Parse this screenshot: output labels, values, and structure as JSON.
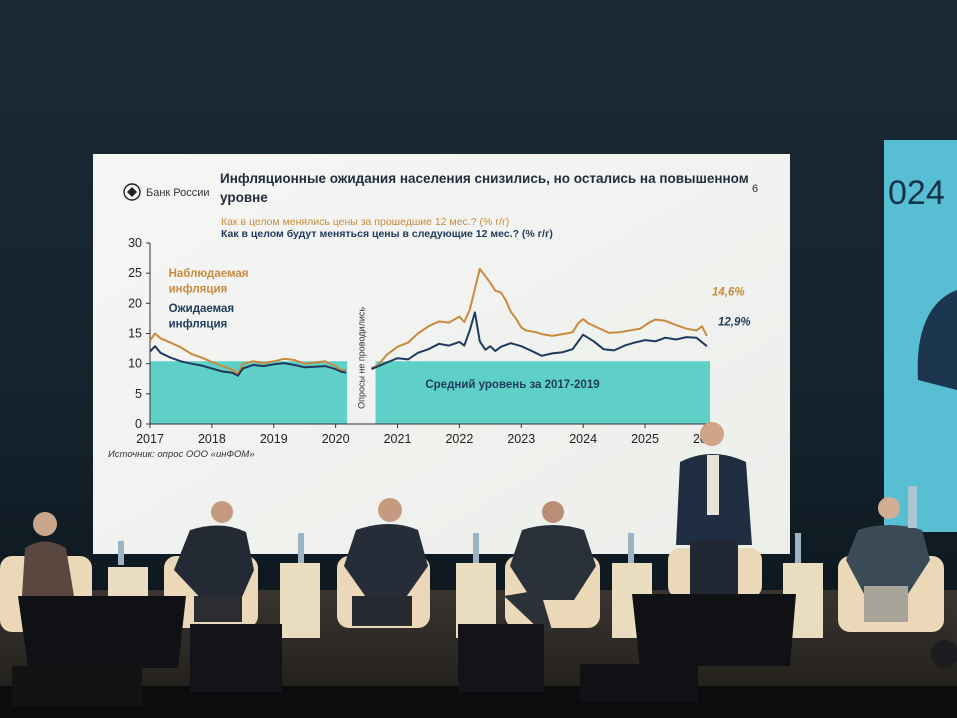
{
  "slide": {
    "logo_text": "Банк России",
    "title": "Инфляционные ожидания населения снизились, но остались на повышенном",
    "title_line2": "уровне",
    "page_number": "6",
    "subtitle_observed": "Как в целом менялись цены за прошедшие 12 мес.? (% г/г)",
    "subtitle_expected": "Как в целом будут меняться цены в следующие 12 мес.? (% г/г)",
    "label_observed_1": "Наблюдаемая",
    "label_observed_2": "инфляция",
    "label_expected_1": "Ожидаемая",
    "label_expected_2": "инфляция",
    "gap_note": "Опросы не проводились",
    "band_label": "Средний уровень за 2017-2019",
    "source": "Источник: опрос ООО «инФОМ»",
    "last_observed_label": "14,6%",
    "last_expected_label": "12,9%",
    "side_screen_text": "024"
  },
  "colors": {
    "observed": "#c98a3e",
    "expected": "#1f3a5c",
    "band": "#5fd0c8",
    "slide_bg": "#f4f5f3",
    "side_screen": "#58bed3"
  },
  "chart_data": {
    "type": "line",
    "ylim": [
      0,
      30
    ],
    "yticks": [
      "0",
      "5",
      "10",
      "15",
      "20",
      "25",
      "30"
    ],
    "xticks": [
      "2017",
      "2018",
      "2019",
      "2020",
      "2021",
      "2022",
      "2023",
      "2024",
      "2025",
      "2021"
    ],
    "xlim": [
      2017.0,
      2026.05
    ],
    "gap_between": [
      2020.25,
      2020.58
    ],
    "band": {
      "name": "Средний уровень за 2017-2019",
      "value": 10.4
    },
    "series": [
      {
        "name": "Наблюдаемая инфляция",
        "segments": [
          [
            [
              2017.0,
              13.8
            ],
            [
              2017.08,
              15.0
            ],
            [
              2017.17,
              14.2
            ],
            [
              2017.33,
              13.5
            ],
            [
              2017.5,
              12.7
            ],
            [
              2017.67,
              11.6
            ],
            [
              2017.83,
              11.0
            ],
            [
              2018.0,
              10.3
            ],
            [
              2018.17,
              9.6
            ],
            [
              2018.33,
              9.0
            ],
            [
              2018.42,
              8.3
            ],
            [
              2018.5,
              10.0
            ],
            [
              2018.67,
              10.4
            ],
            [
              2018.83,
              10.1
            ],
            [
              2019.0,
              10.4
            ],
            [
              2019.17,
              10.8
            ],
            [
              2019.33,
              10.6
            ],
            [
              2019.5,
              10.0
            ],
            [
              2019.67,
              10.2
            ],
            [
              2019.83,
              10.4
            ],
            [
              2020.0,
              9.6
            ],
            [
              2020.08,
              9.0
            ],
            [
              2020.17,
              8.9
            ]
          ],
          [
            [
              2020.58,
              9.3
            ],
            [
              2020.67,
              9.6
            ],
            [
              2020.83,
              11.5
            ],
            [
              2021.0,
              12.8
            ],
            [
              2021.17,
              13.5
            ],
            [
              2021.33,
              15.0
            ],
            [
              2021.5,
              16.2
            ],
            [
              2021.67,
              17.0
            ],
            [
              2021.83,
              16.8
            ],
            [
              2022.0,
              17.8
            ],
            [
              2022.08,
              16.9
            ],
            [
              2022.17,
              19.0
            ],
            [
              2022.25,
              22.4
            ],
            [
              2022.33,
              25.7
            ],
            [
              2022.42,
              24.5
            ],
            [
              2022.5,
              23.4
            ],
            [
              2022.58,
              22.1
            ],
            [
              2022.67,
              21.8
            ],
            [
              2022.75,
              20.5
            ],
            [
              2022.83,
              18.6
            ],
            [
              2022.92,
              17.4
            ],
            [
              2023.0,
              16.0
            ],
            [
              2023.08,
              15.5
            ],
            [
              2023.25,
              15.2
            ],
            [
              2023.33,
              14.9
            ],
            [
              2023.5,
              14.6
            ],
            [
              2023.67,
              14.9
            ],
            [
              2023.83,
              15.2
            ],
            [
              2023.92,
              16.7
            ],
            [
              2024.0,
              17.4
            ],
            [
              2024.08,
              16.7
            ],
            [
              2024.25,
              15.9
            ],
            [
              2024.42,
              15.1
            ],
            [
              2024.58,
              15.2
            ],
            [
              2024.75,
              15.5
            ],
            [
              2024.92,
              15.8
            ],
            [
              2025.08,
              16.9
            ],
            [
              2025.17,
              17.3
            ],
            [
              2025.33,
              17.1
            ],
            [
              2025.5,
              16.4
            ],
            [
              2025.67,
              15.8
            ],
            [
              2025.83,
              15.5
            ],
            [
              2025.92,
              16.2
            ],
            [
              2026.0,
              14.6
            ]
          ]
        ]
      },
      {
        "name": "Ожидаемая инфляция",
        "segments": [
          [
            [
              2017.0,
              12.0
            ],
            [
              2017.08,
              12.9
            ],
            [
              2017.17,
              11.8
            ],
            [
              2017.33,
              11.0
            ],
            [
              2017.5,
              10.4
            ],
            [
              2017.67,
              10.0
            ],
            [
              2017.83,
              9.7
            ],
            [
              2018.0,
              9.2
            ],
            [
              2018.17,
              8.7
            ],
            [
              2018.33,
              8.5
            ],
            [
              2018.42,
              8.0
            ],
            [
              2018.5,
              9.2
            ],
            [
              2018.67,
              9.8
            ],
            [
              2018.83,
              9.6
            ],
            [
              2019.0,
              9.9
            ],
            [
              2019.17,
              10.1
            ],
            [
              2019.33,
              9.8
            ],
            [
              2019.5,
              9.4
            ],
            [
              2019.67,
              9.5
            ],
            [
              2019.83,
              9.6
            ],
            [
              2020.0,
              9.1
            ],
            [
              2020.08,
              8.7
            ],
            [
              2020.17,
              8.5
            ]
          ],
          [
            [
              2020.58,
              9.1
            ],
            [
              2020.67,
              9.5
            ],
            [
              2020.83,
              10.2
            ],
            [
              2021.0,
              10.9
            ],
            [
              2021.17,
              10.7
            ],
            [
              2021.33,
              11.8
            ],
            [
              2021.5,
              12.4
            ],
            [
              2021.67,
              13.3
            ],
            [
              2021.83,
              13.0
            ],
            [
              2022.0,
              13.6
            ],
            [
              2022.08,
              13.0
            ],
            [
              2022.17,
              15.6
            ],
            [
              2022.25,
              18.5
            ],
            [
              2022.33,
              13.7
            ],
            [
              2022.42,
              12.3
            ],
            [
              2022.5,
              12.9
            ],
            [
              2022.58,
              12.1
            ],
            [
              2022.67,
              12.8
            ],
            [
              2022.83,
              13.4
            ],
            [
              2023.0,
              12.9
            ],
            [
              2023.17,
              12.1
            ],
            [
              2023.33,
              11.3
            ],
            [
              2023.5,
              11.7
            ],
            [
              2023.67,
              11.9
            ],
            [
              2023.83,
              12.4
            ],
            [
              2024.0,
              14.8
            ],
            [
              2024.17,
              13.7
            ],
            [
              2024.33,
              12.4
            ],
            [
              2024.5,
              12.2
            ],
            [
              2024.67,
              13.0
            ],
            [
              2024.83,
              13.5
            ],
            [
              2025.0,
              13.9
            ],
            [
              2025.17,
              13.7
            ],
            [
              2025.33,
              14.3
            ],
            [
              2025.5,
              14.0
            ],
            [
              2025.67,
              14.4
            ],
            [
              2025.83,
              14.3
            ],
            [
              2026.0,
              12.9
            ]
          ]
        ]
      }
    ]
  }
}
